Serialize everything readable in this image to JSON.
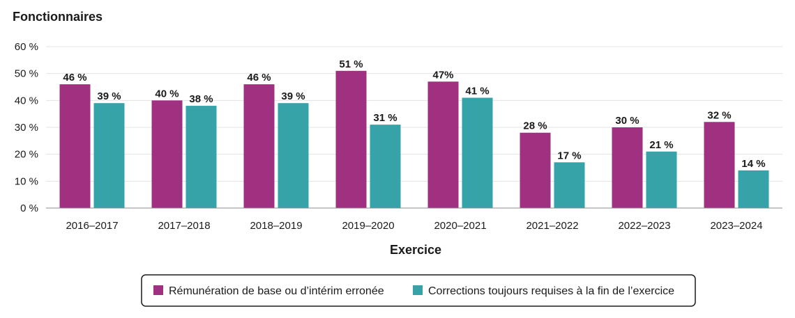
{
  "chart_data": {
    "type": "bar",
    "title": "Fonctionnaires",
    "xlabel": "Exercice",
    "ylabel": "",
    "ylim": [
      0,
      60
    ],
    "yticks": [
      0,
      10,
      20,
      30,
      40,
      50,
      60
    ],
    "ytick_labels": [
      "0 %",
      "10 %",
      "20 %",
      "30 %",
      "40 %",
      "50 %",
      "60 %"
    ],
    "grid": true,
    "legend_position": "bottom",
    "categories": [
      "2016–2017",
      "2017–2018",
      "2018–2019",
      "2019–2020",
      "2020–2021",
      "2021–2022",
      "2022–2023",
      "2023–2024"
    ],
    "series": [
      {
        "name": "Rémunération de base ou d’intérim erronée",
        "color": "#a03080",
        "values": [
          46,
          40,
          46,
          51,
          47,
          28,
          30,
          32
        ],
        "labels": [
          "46 %",
          "40 %",
          "46 %",
          "51 %",
          "47%",
          "28 %",
          "30 %",
          "32 %"
        ]
      },
      {
        "name": "Corrections toujours requises à la fin de l’exercice",
        "color": "#36a3a8",
        "values": [
          39,
          38,
          39,
          31,
          41,
          17,
          21,
          14
        ],
        "labels": [
          "39 %",
          "38 %",
          "39 %",
          "31 %",
          "41 %",
          "17 %",
          "21 %",
          "14 %"
        ]
      }
    ]
  }
}
